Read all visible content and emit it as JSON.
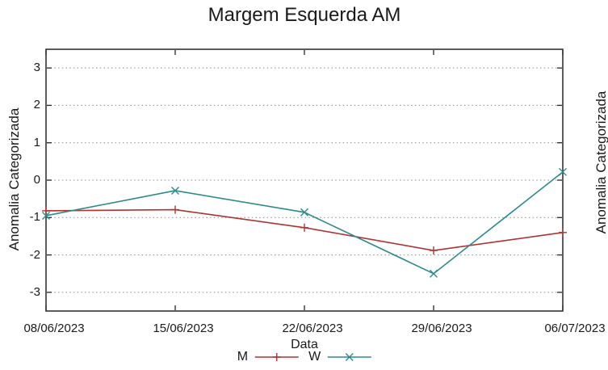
{
  "chart_data": {
    "type": "line",
    "title": "Margem Esquerda AM",
    "xlabel": "Data",
    "ylabel": "Anomalia Categorizada",
    "x_categories": [
      "08/06/2023",
      "15/06/2023",
      "22/06/2023",
      "29/06/2023",
      "06/07/2023"
    ],
    "x_label_clipped_last": "06/07/202",
    "y_ticks": [
      3,
      2,
      1,
      0,
      -1,
      -2,
      -3
    ],
    "ylim": [
      -3.5,
      3.5
    ],
    "grid": "horizontal-dotted",
    "legend_position": "bottom-center-below-xlabel",
    "series": [
      {
        "name": "M",
        "color": "#b03333",
        "marker": "plus",
        "values": [
          -0.82,
          -0.79,
          -1.27,
          -1.88,
          -1.4
        ]
      },
      {
        "name": "W",
        "color": "#2e8b8b",
        "marker": "cross",
        "values": [
          -0.95,
          -0.28,
          -0.86,
          -2.5,
          0.22
        ]
      }
    ]
  },
  "adjacent_chart": {
    "ylabel": "Anomalia Categorizada"
  },
  "colors": {
    "background": "#ffffff",
    "plot_border": "#262626",
    "gridline": "#8a8a8a",
    "text": "#1a1a1a",
    "series_m": "#b03333",
    "series_w": "#2e8b8b"
  }
}
